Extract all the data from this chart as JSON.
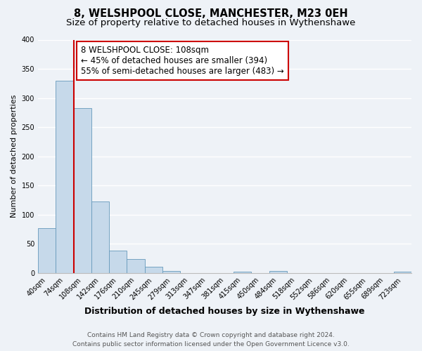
{
  "title": "8, WELSHPOOL CLOSE, MANCHESTER, M23 0EH",
  "subtitle": "Size of property relative to detached houses in Wythenshawe",
  "xlabel": "Distribution of detached houses by size in Wythenshawe",
  "ylabel": "Number of detached properties",
  "bin_labels": [
    "40sqm",
    "74sqm",
    "108sqm",
    "142sqm",
    "176sqm",
    "210sqm",
    "245sqm",
    "279sqm",
    "313sqm",
    "347sqm",
    "381sqm",
    "415sqm",
    "450sqm",
    "484sqm",
    "518sqm",
    "552sqm",
    "586sqm",
    "620sqm",
    "655sqm",
    "689sqm",
    "723sqm"
  ],
  "bar_heights": [
    77,
    330,
    283,
    122,
    38,
    24,
    11,
    3,
    0,
    0,
    0,
    2,
    0,
    3,
    0,
    0,
    0,
    0,
    0,
    0,
    2
  ],
  "bar_color": "#c6d9ea",
  "bar_edge_color": "#6699bb",
  "vline_x_index": 2,
  "vline_color": "#cc0000",
  "annotation_line1": "8 WELSHPOOL CLOSE: 108sqm",
  "annotation_line2": "← 45% of detached houses are smaller (394)",
  "annotation_line3": "55% of semi-detached houses are larger (483) →",
  "annotation_box_color": "#ffffff",
  "annotation_box_edgecolor": "#cc0000",
  "ylim": [
    0,
    400
  ],
  "yticks": [
    0,
    50,
    100,
    150,
    200,
    250,
    300,
    350,
    400
  ],
  "footer_line1": "Contains HM Land Registry data © Crown copyright and database right 2024.",
  "footer_line2": "Contains public sector information licensed under the Open Government Licence v3.0.",
  "bg_color": "#eef2f7",
  "grid_color": "#ffffff",
  "title_fontsize": 10.5,
  "subtitle_fontsize": 9.5,
  "xlabel_fontsize": 9,
  "ylabel_fontsize": 8,
  "tick_fontsize": 7,
  "annotation_fontsize": 8.5,
  "footer_fontsize": 6.5
}
